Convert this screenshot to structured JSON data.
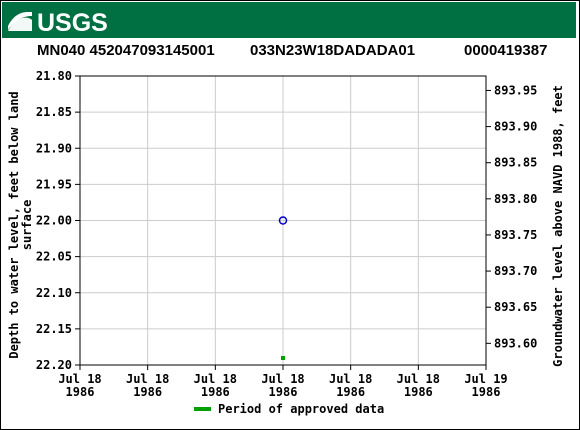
{
  "header": {
    "logo": "USGS",
    "site_id": "MN040 452047093145001",
    "site_name": "033N23W18DADADA01",
    "station_number": "0000419387"
  },
  "chart_data": {
    "type": "scatter",
    "ylabel_left_line1": "Depth to water level, feet below land",
    "ylabel_left_line2": "surface",
    "ylabel_right": "Groundwater level above NAVD 1988, feet",
    "y_left": {
      "range": [
        21.8,
        22.2
      ],
      "inverted": true,
      "ticks": [
        "21.80",
        "21.85",
        "21.90",
        "21.95",
        "22.00",
        "22.05",
        "22.10",
        "22.15",
        "22.20"
      ]
    },
    "y_right": {
      "range": [
        893.97,
        893.57
      ],
      "ticks": [
        "893.95",
        "893.90",
        "893.85",
        "893.80",
        "893.75",
        "893.70",
        "893.65",
        "893.60"
      ]
    },
    "x": {
      "ticks": [
        [
          "Jul 18",
          "1986"
        ],
        [
          "Jul 18",
          "1986"
        ],
        [
          "Jul 18",
          "1986"
        ],
        [
          "Jul 18",
          "1986"
        ],
        [
          "Jul 18",
          "1986"
        ],
        [
          "Jul 18",
          "1986"
        ],
        [
          "Jul 19",
          "1986"
        ]
      ]
    },
    "grid": true,
    "series": [
      {
        "marker": "open-circle",
        "color": "#0000cc",
        "points": [
          {
            "x": "Jul 18 1986",
            "y": 22.0
          }
        ]
      }
    ],
    "approved_period": {
      "color": "#00a000",
      "x": "Jul 18 1986"
    },
    "legend": [
      "Period of approved data"
    ]
  }
}
